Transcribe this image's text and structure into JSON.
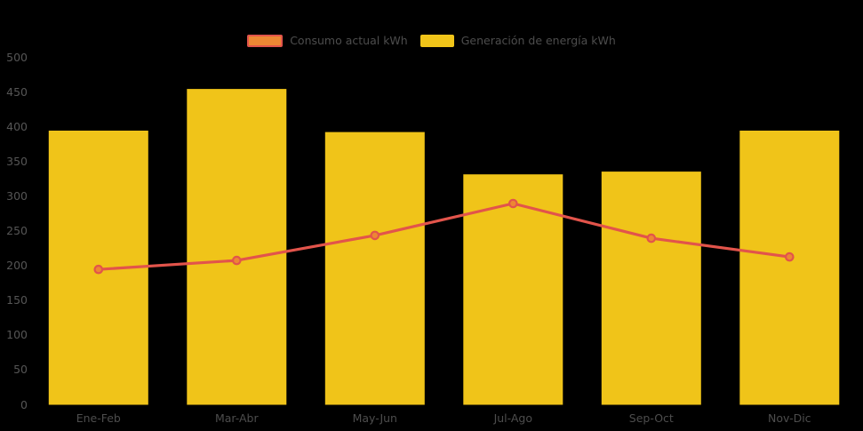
{
  "colors": {
    "background": "#000000",
    "bar": "#F0C419",
    "line": "#E2544B",
    "marker_fill": "#ED8733",
    "axis_text": "#555555",
    "legend_text": "#4D4D4D"
  },
  "legend": {
    "items": [
      {
        "label": "Consumo actual kWh"
      },
      {
        "label": "Generación de energía kWh"
      }
    ]
  },
  "chart_data": {
    "type": "bar+line combo",
    "title": "",
    "xlabel": "",
    "ylabel": "",
    "categories": [
      "Ene-Feb",
      "Mar-Abr",
      "May-Jun",
      "Jul-Ago",
      "Sep-Oct",
      "Nov-Dic"
    ],
    "series": [
      {
        "name": "Generación de energía kWh",
        "type": "bar",
        "color": "#F0C419",
        "values": [
          395,
          455,
          393,
          332,
          336,
          395
        ]
      },
      {
        "name": "Consumo actual kWh",
        "type": "line",
        "color": "#E2544B",
        "marker_fill": "#ED8733",
        "values": [
          195,
          208,
          244,
          290,
          240,
          213
        ]
      }
    ],
    "ylim": [
      0,
      500
    ],
    "yticks": [
      0,
      50,
      100,
      150,
      200,
      250,
      300,
      350,
      400,
      450,
      500
    ],
    "grid": false,
    "legend_position": "top-center"
  }
}
